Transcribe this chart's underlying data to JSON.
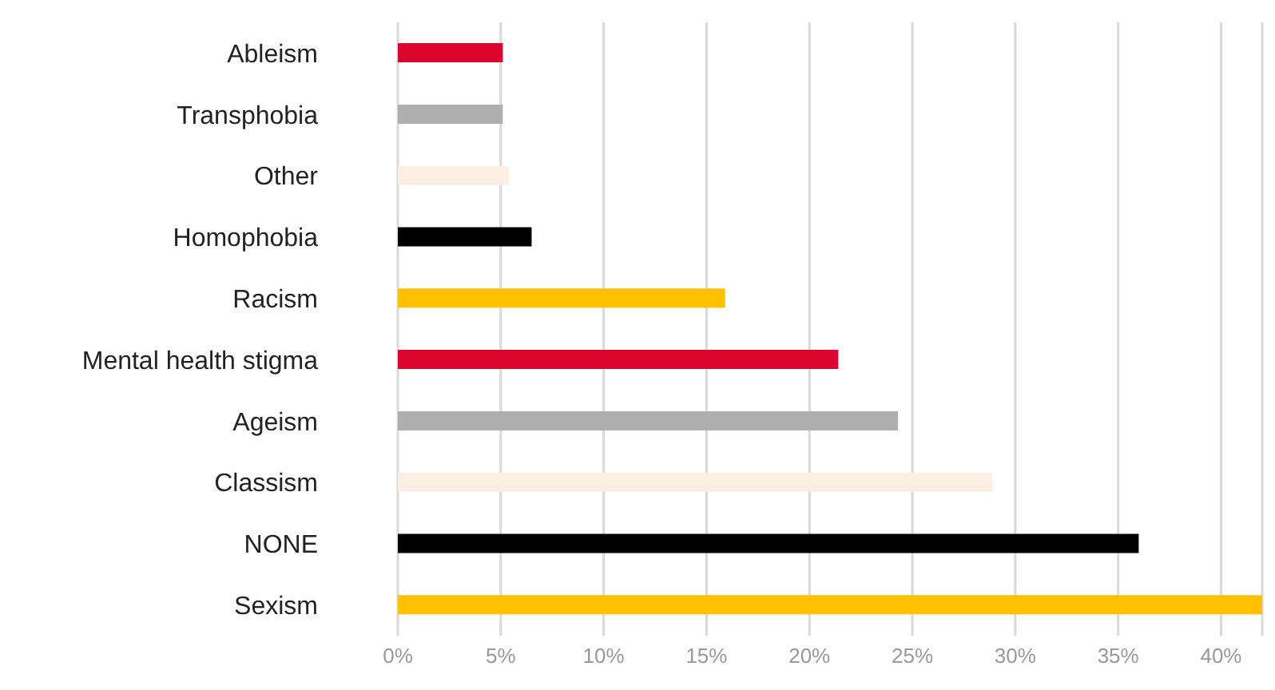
{
  "chart_data": {
    "type": "bar",
    "orientation": "horizontal",
    "categories": [
      "Ableism",
      "Transphobia",
      "Other",
      "Homophobia",
      "Racism",
      "Mental health stigma",
      "Ageism",
      "Classism",
      "NONE",
      "Sexism"
    ],
    "values": [
      5.1,
      5.1,
      5.4,
      6.5,
      15.9,
      21.4,
      24.3,
      28.9,
      36.0,
      42.0
    ],
    "colors": [
      "#dc052d",
      "#aeaeae",
      "#fbefe4",
      "#000000",
      "#ffc000",
      "#dc052d",
      "#aeaeae",
      "#fbefe4",
      "#000000",
      "#ffc000"
    ],
    "xlim": [
      0,
      42
    ],
    "xticks": [
      {
        "value": 0,
        "label": "0%"
      },
      {
        "value": 5,
        "label": "5%"
      },
      {
        "value": 10,
        "label": "10%"
      },
      {
        "value": 15,
        "label": "15%"
      },
      {
        "value": 20,
        "label": "20%"
      },
      {
        "value": 25,
        "label": "25%"
      },
      {
        "value": 30,
        "label": "30%"
      },
      {
        "value": 35,
        "label": "35%"
      },
      {
        "value": 40,
        "label": "40%"
      }
    ],
    "grid": "x"
  }
}
